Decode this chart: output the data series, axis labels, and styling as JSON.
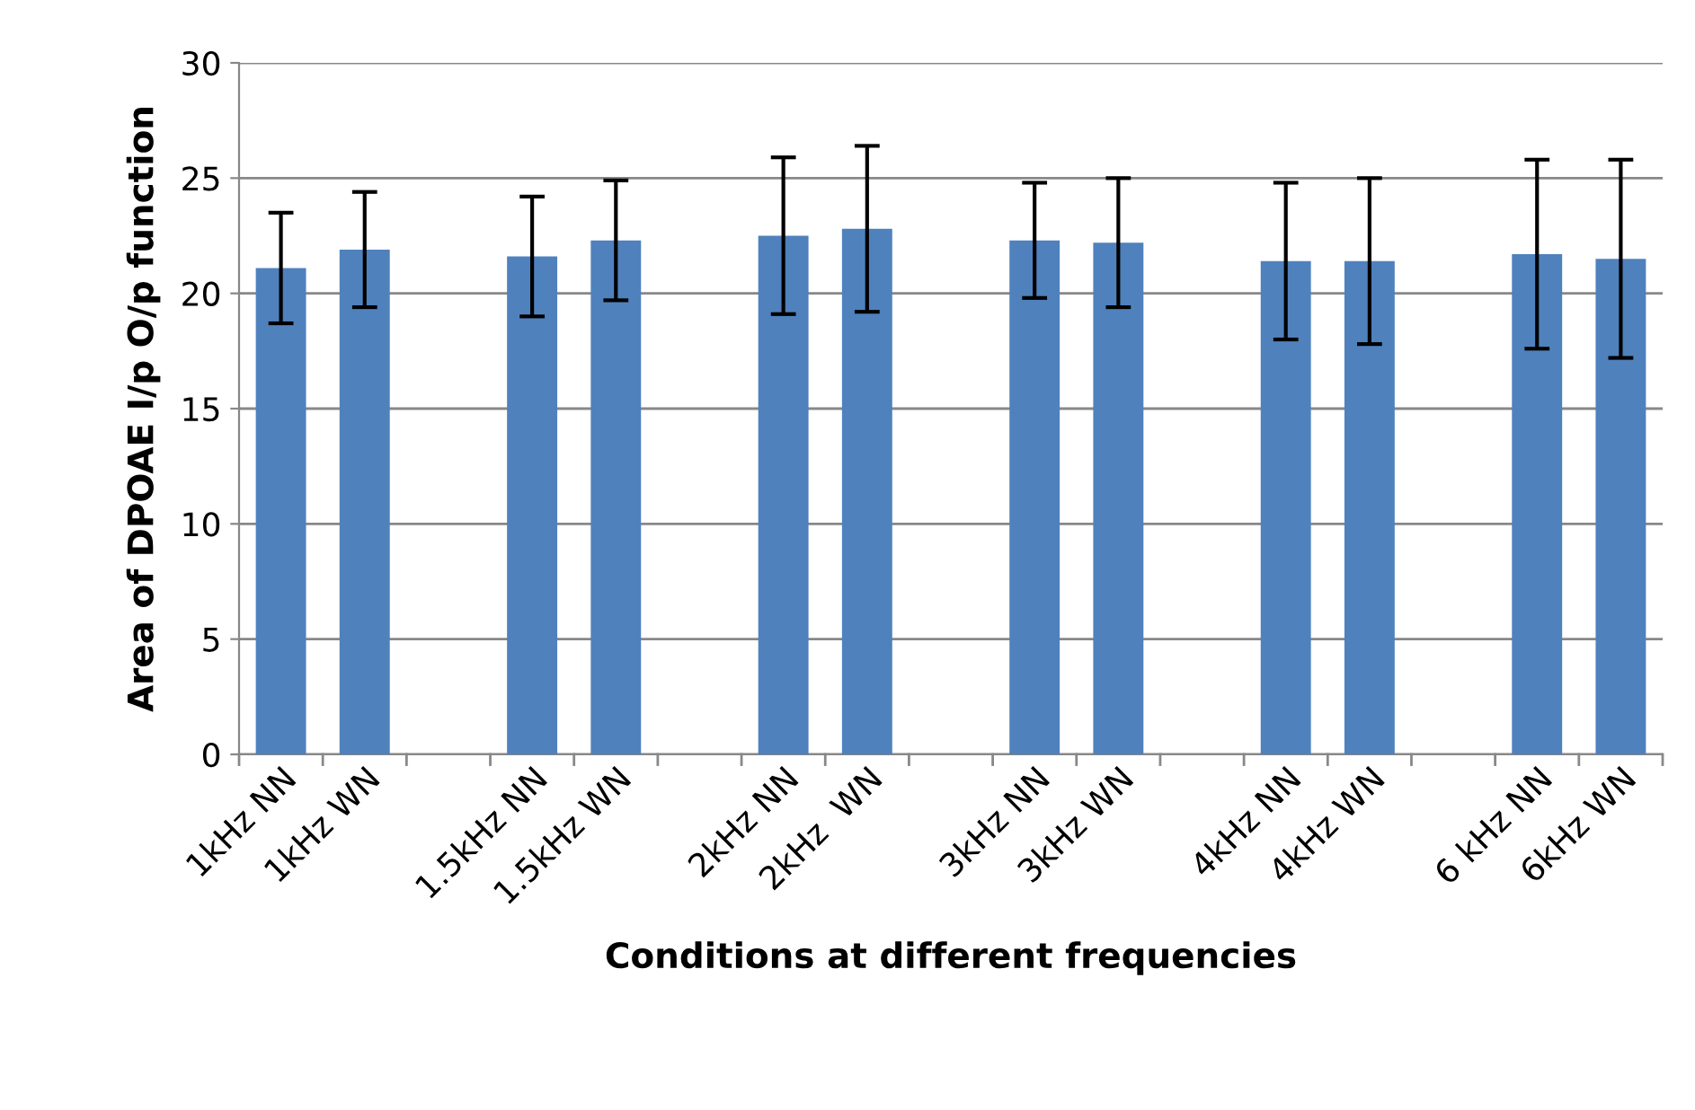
{
  "chart_data": {
    "type": "bar",
    "xlabel": "Conditions at different frequencies",
    "ylabel": "Area of DPOAE I/p O/p function",
    "categories": [
      "1kHz NN",
      "1kHz WN",
      null,
      "1.5kHz NN",
      "1.5kHz WN",
      null,
      "2kHz NN",
      "2kHz  WN",
      null,
      "3kHz NN",
      "3kHz WN",
      null,
      "4kHz NN",
      "4kHz WN",
      null,
      "6 kHz NN",
      "6kHz WN"
    ],
    "values": [
      21.1,
      21.9,
      null,
      21.6,
      22.3,
      null,
      22.5,
      22.8,
      null,
      22.3,
      22.2,
      null,
      21.4,
      21.4,
      null,
      21.7,
      21.5
    ],
    "errors": [
      2.4,
      2.5,
      null,
      2.6,
      2.6,
      null,
      3.4,
      3.6,
      null,
      2.5,
      2.8,
      null,
      3.4,
      3.6,
      null,
      4.1,
      4.3
    ],
    "color": "#4f81bd",
    "ylim": [
      0,
      30
    ],
    "yticks": [
      0,
      5,
      10,
      15,
      20,
      25,
      30
    ],
    "grid": "y",
    "legend": false
  }
}
